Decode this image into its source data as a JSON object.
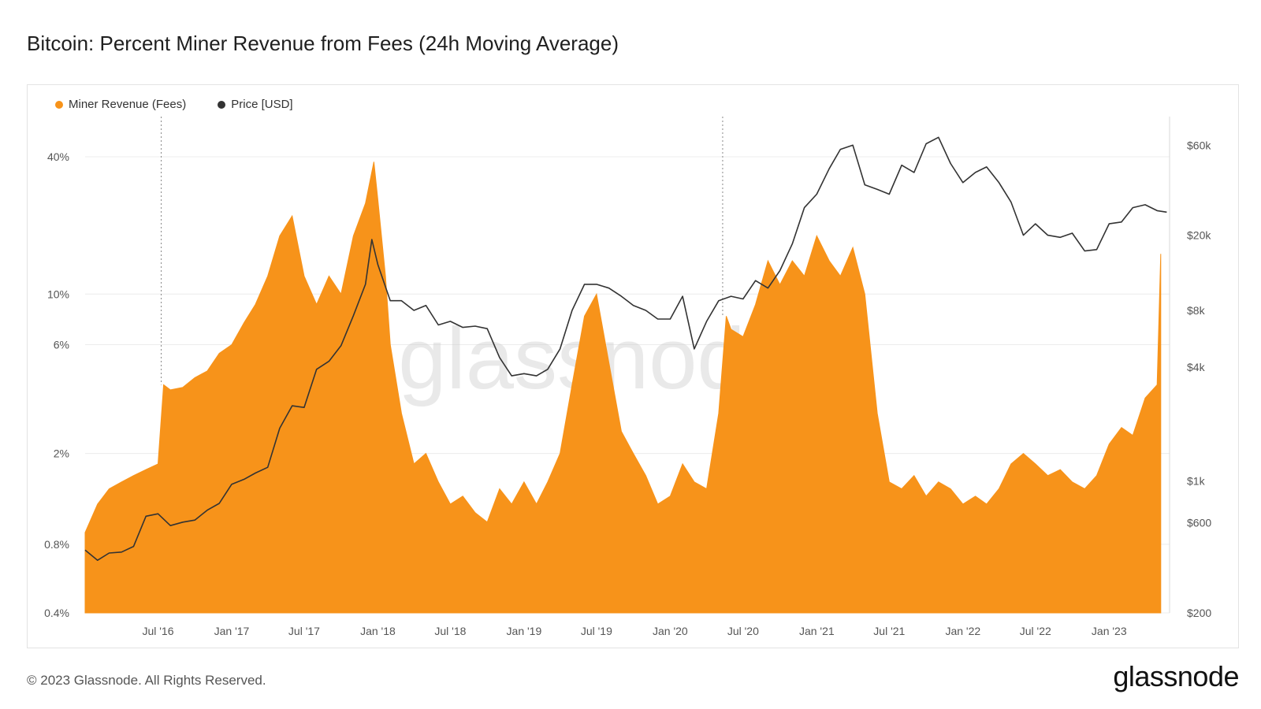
{
  "title": "Bitcoin: Percent Miner Revenue from Fees (24h Moving Average)",
  "footer": {
    "copyright": "© 2023 Glassnode. All Rights Reserved.",
    "brand": "glassnode"
  },
  "watermark": "glassnode",
  "colors": {
    "fees": "#F7931A",
    "price": "#333333",
    "grid": "#ececec",
    "axis_text": "#555555"
  },
  "chart_data": {
    "type": "area",
    "title": "Bitcoin: Percent Miner Revenue from Fees (24h Moving Average)",
    "x_axis": {
      "type": "date",
      "range": [
        "2016-01-01",
        "2023-06-01"
      ],
      "ticks": [
        {
          "date": "2016-07-01",
          "label": "Jul '16"
        },
        {
          "date": "2017-01-01",
          "label": "Jan '17"
        },
        {
          "date": "2017-07-01",
          "label": "Jul '17"
        },
        {
          "date": "2018-01-01",
          "label": "Jan '18"
        },
        {
          "date": "2018-07-01",
          "label": "Jul '18"
        },
        {
          "date": "2019-01-01",
          "label": "Jan '19"
        },
        {
          "date": "2019-07-01",
          "label": "Jul '19"
        },
        {
          "date": "2020-01-01",
          "label": "Jan '20"
        },
        {
          "date": "2020-07-01",
          "label": "Jul '20"
        },
        {
          "date": "2021-01-01",
          "label": "Jan '21"
        },
        {
          "date": "2021-07-01",
          "label": "Jul '21"
        },
        {
          "date": "2022-01-01",
          "label": "Jan '22"
        },
        {
          "date": "2022-07-01",
          "label": "Jul '22"
        },
        {
          "date": "2023-01-01",
          "label": "Jan '23"
        }
      ]
    },
    "y_left": {
      "scale": "log",
      "unit": "%",
      "range": [
        0.4,
        60
      ],
      "ticks": [
        {
          "value": 0.4,
          "label": "0.4%"
        },
        {
          "value": 0.8,
          "label": "0.8%"
        },
        {
          "value": 2,
          "label": "2%"
        },
        {
          "value": 6,
          "label": "6%"
        },
        {
          "value": 10,
          "label": "10%"
        },
        {
          "value": 40,
          "label": "40%"
        }
      ]
    },
    "y_right": {
      "scale": "log",
      "unit": "USD",
      "range": [
        200,
        85000
      ],
      "ticks": [
        {
          "value": 200,
          "label": "$200"
        },
        {
          "value": 600,
          "label": "$600"
        },
        {
          "value": 1000,
          "label": "$1k"
        },
        {
          "value": 4000,
          "label": "$4k"
        },
        {
          "value": 8000,
          "label": "$8k"
        },
        {
          "value": 20000,
          "label": "$20k"
        },
        {
          "value": 60000,
          "label": "$60k"
        }
      ]
    },
    "grid": true,
    "legend_position": "top-left",
    "event_markers": [
      "2016-07-09",
      "2020-05-11"
    ],
    "series": [
      {
        "name": "Miner Revenue (Fees)",
        "axis": "left",
        "type": "area",
        "points": [
          [
            "2016-01-01",
            0.9
          ],
          [
            "2016-02-01",
            1.2
          ],
          [
            "2016-03-01",
            1.4
          ],
          [
            "2016-04-01",
            1.5
          ],
          [
            "2016-05-01",
            1.6
          ],
          [
            "2016-06-01",
            1.7
          ],
          [
            "2016-07-01",
            1.8
          ],
          [
            "2016-07-15",
            4.0
          ],
          [
            "2016-08-01",
            3.8
          ],
          [
            "2016-09-01",
            3.9
          ],
          [
            "2016-10-01",
            4.3
          ],
          [
            "2016-11-01",
            4.6
          ],
          [
            "2016-12-01",
            5.5
          ],
          [
            "2017-01-01",
            6.0
          ],
          [
            "2017-02-01",
            7.5
          ],
          [
            "2017-03-01",
            9.0
          ],
          [
            "2017-04-01",
            12.0
          ],
          [
            "2017-05-01",
            18.0
          ],
          [
            "2017-06-01",
            22.0
          ],
          [
            "2017-07-01",
            12.0
          ],
          [
            "2017-08-01",
            9.0
          ],
          [
            "2017-09-01",
            12.0
          ],
          [
            "2017-10-01",
            10.0
          ],
          [
            "2017-11-01",
            18.0
          ],
          [
            "2017-12-01",
            25.0
          ],
          [
            "2017-12-22",
            38.0
          ],
          [
            "2018-01-01",
            26.0
          ],
          [
            "2018-01-20",
            12.0
          ],
          [
            "2018-02-01",
            6.0
          ],
          [
            "2018-03-01",
            3.0
          ],
          [
            "2018-04-01",
            1.8
          ],
          [
            "2018-05-01",
            2.0
          ],
          [
            "2018-06-01",
            1.5
          ],
          [
            "2018-07-01",
            1.2
          ],
          [
            "2018-08-01",
            1.3
          ],
          [
            "2018-09-01",
            1.1
          ],
          [
            "2018-10-01",
            1.0
          ],
          [
            "2018-11-01",
            1.4
          ],
          [
            "2018-12-01",
            1.2
          ],
          [
            "2019-01-01",
            1.5
          ],
          [
            "2019-02-01",
            1.2
          ],
          [
            "2019-03-01",
            1.5
          ],
          [
            "2019-04-01",
            2.0
          ],
          [
            "2019-05-01",
            4.0
          ],
          [
            "2019-06-01",
            8.0
          ],
          [
            "2019-07-01",
            10.0
          ],
          [
            "2019-08-01",
            5.0
          ],
          [
            "2019-09-01",
            2.5
          ],
          [
            "2019-10-01",
            2.0
          ],
          [
            "2019-11-01",
            1.6
          ],
          [
            "2019-12-01",
            1.2
          ],
          [
            "2020-01-01",
            1.3
          ],
          [
            "2020-02-01",
            1.8
          ],
          [
            "2020-03-01",
            1.5
          ],
          [
            "2020-04-01",
            1.4
          ],
          [
            "2020-05-01",
            3.0
          ],
          [
            "2020-05-20",
            8.0
          ],
          [
            "2020-06-01",
            7.0
          ],
          [
            "2020-07-01",
            6.5
          ],
          [
            "2020-08-01",
            9.0
          ],
          [
            "2020-09-01",
            14.0
          ],
          [
            "2020-10-01",
            11.0
          ],
          [
            "2020-11-01",
            14.0
          ],
          [
            "2020-12-01",
            12.0
          ],
          [
            "2021-01-01",
            18.0
          ],
          [
            "2021-02-01",
            14.0
          ],
          [
            "2021-03-01",
            12.0
          ],
          [
            "2021-04-01",
            16.0
          ],
          [
            "2021-05-01",
            10.0
          ],
          [
            "2021-06-01",
            3.0
          ],
          [
            "2021-07-01",
            1.5
          ],
          [
            "2021-08-01",
            1.4
          ],
          [
            "2021-09-01",
            1.6
          ],
          [
            "2021-10-01",
            1.3
          ],
          [
            "2021-11-01",
            1.5
          ],
          [
            "2021-12-01",
            1.4
          ],
          [
            "2022-01-01",
            1.2
          ],
          [
            "2022-02-01",
            1.3
          ],
          [
            "2022-03-01",
            1.2
          ],
          [
            "2022-04-01",
            1.4
          ],
          [
            "2022-05-01",
            1.8
          ],
          [
            "2022-06-01",
            2.0
          ],
          [
            "2022-07-01",
            1.8
          ],
          [
            "2022-08-01",
            1.6
          ],
          [
            "2022-09-01",
            1.7
          ],
          [
            "2022-10-01",
            1.5
          ],
          [
            "2022-11-01",
            1.4
          ],
          [
            "2022-12-01",
            1.6
          ],
          [
            "2023-01-01",
            2.2
          ],
          [
            "2023-02-01",
            2.6
          ],
          [
            "2023-03-01",
            2.4
          ],
          [
            "2023-04-01",
            3.5
          ],
          [
            "2023-05-01",
            4.0
          ],
          [
            "2023-05-10",
            15.0
          ]
        ]
      },
      {
        "name": "Price [USD]",
        "axis": "right",
        "type": "line",
        "points": [
          [
            "2016-01-01",
            430
          ],
          [
            "2016-02-01",
            380
          ],
          [
            "2016-03-01",
            415
          ],
          [
            "2016-04-01",
            420
          ],
          [
            "2016-05-01",
            450
          ],
          [
            "2016-06-01",
            650
          ],
          [
            "2016-07-01",
            670
          ],
          [
            "2016-08-01",
            580
          ],
          [
            "2016-09-01",
            605
          ],
          [
            "2016-10-01",
            620
          ],
          [
            "2016-11-01",
            700
          ],
          [
            "2016-12-01",
            760
          ],
          [
            "2017-01-01",
            960
          ],
          [
            "2017-02-01",
            1020
          ],
          [
            "2017-03-01",
            1100
          ],
          [
            "2017-04-01",
            1180
          ],
          [
            "2017-05-01",
            1900
          ],
          [
            "2017-06-01",
            2500
          ],
          [
            "2017-07-01",
            2450
          ],
          [
            "2017-08-01",
            3900
          ],
          [
            "2017-09-01",
            4300
          ],
          [
            "2017-10-01",
            5200
          ],
          [
            "2017-11-01",
            7500
          ],
          [
            "2017-12-01",
            11000
          ],
          [
            "2017-12-17",
            19000
          ],
          [
            "2018-01-01",
            14000
          ],
          [
            "2018-02-01",
            9000
          ],
          [
            "2018-03-01",
            9000
          ],
          [
            "2018-04-01",
            8000
          ],
          [
            "2018-05-01",
            8500
          ],
          [
            "2018-06-01",
            6700
          ],
          [
            "2018-07-01",
            7000
          ],
          [
            "2018-08-01",
            6500
          ],
          [
            "2018-09-01",
            6600
          ],
          [
            "2018-10-01",
            6400
          ],
          [
            "2018-11-01",
            4500
          ],
          [
            "2018-12-01",
            3600
          ],
          [
            "2019-01-01",
            3700
          ],
          [
            "2019-02-01",
            3600
          ],
          [
            "2019-03-01",
            3900
          ],
          [
            "2019-04-01",
            5000
          ],
          [
            "2019-05-01",
            8000
          ],
          [
            "2019-06-01",
            11000
          ],
          [
            "2019-07-01",
            11000
          ],
          [
            "2019-08-01",
            10500
          ],
          [
            "2019-09-01",
            9500
          ],
          [
            "2019-10-01",
            8500
          ],
          [
            "2019-11-01",
            8000
          ],
          [
            "2019-12-01",
            7200
          ],
          [
            "2020-01-01",
            7200
          ],
          [
            "2020-02-01",
            9500
          ],
          [
            "2020-03-01",
            5000
          ],
          [
            "2020-04-01",
            7000
          ],
          [
            "2020-05-01",
            9000
          ],
          [
            "2020-06-01",
            9500
          ],
          [
            "2020-07-01",
            9200
          ],
          [
            "2020-08-01",
            11500
          ],
          [
            "2020-09-01",
            10500
          ],
          [
            "2020-10-01",
            13000
          ],
          [
            "2020-11-01",
            18000
          ],
          [
            "2020-12-01",
            28000
          ],
          [
            "2021-01-01",
            33000
          ],
          [
            "2021-02-01",
            45000
          ],
          [
            "2021-03-01",
            57000
          ],
          [
            "2021-04-01",
            60000
          ],
          [
            "2021-05-01",
            37000
          ],
          [
            "2021-06-01",
            35000
          ],
          [
            "2021-07-01",
            33000
          ],
          [
            "2021-08-01",
            47000
          ],
          [
            "2021-09-01",
            43000
          ],
          [
            "2021-10-01",
            61000
          ],
          [
            "2021-11-01",
            66000
          ],
          [
            "2021-12-01",
            48000
          ],
          [
            "2022-01-01",
            38000
          ],
          [
            "2022-02-01",
            43000
          ],
          [
            "2022-03-01",
            46000
          ],
          [
            "2022-04-01",
            38000
          ],
          [
            "2022-05-01",
            30000
          ],
          [
            "2022-06-01",
            20000
          ],
          [
            "2022-07-01",
            23000
          ],
          [
            "2022-08-01",
            20000
          ],
          [
            "2022-09-01",
            19500
          ],
          [
            "2022-10-01",
            20500
          ],
          [
            "2022-11-01",
            16500
          ],
          [
            "2022-12-01",
            16800
          ],
          [
            "2023-01-01",
            23000
          ],
          [
            "2023-02-01",
            23500
          ],
          [
            "2023-03-01",
            28000
          ],
          [
            "2023-04-01",
            29000
          ],
          [
            "2023-05-01",
            27000
          ],
          [
            "2023-05-25",
            26500
          ]
        ]
      }
    ]
  }
}
